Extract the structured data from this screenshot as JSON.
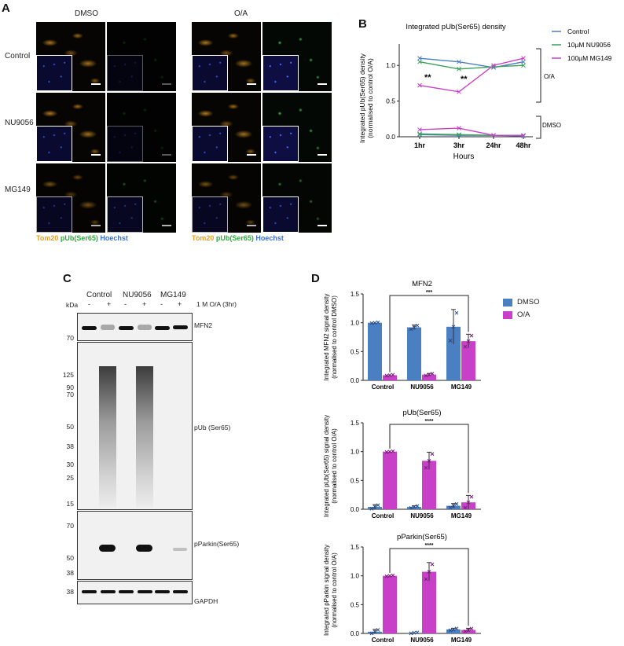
{
  "panelA": {
    "letter": "A",
    "col_labels": [
      "DMSO",
      "O/A"
    ],
    "row_labels": [
      "Control",
      "NU9056",
      "MG149"
    ],
    "legend": {
      "tom20": "Tom20",
      "pub": "pUb(Ser65)",
      "hoechst": "Hoechst"
    },
    "colors": {
      "tom20": "#e6a020",
      "pub": "#2eaa3a",
      "hoechst": "#3a6fd0"
    }
  },
  "panelB": {
    "letter": "B",
    "chart_data": {
      "type": "line",
      "title": "Integrated pUb(Ser65) density",
      "xlabel": "Hours",
      "ylabel": "Integrated pUb(Ser65) density (normalised to control O/A)",
      "ylabel_lines": [
        "Integrated pUb(Ser65) density",
        "(normalised to control O/A)"
      ],
      "categories": [
        "1hr",
        "3hr",
        "24hr",
        "48hr"
      ],
      "yticks": [
        "0.0",
        "0.5",
        "1.0"
      ],
      "ylim": [
        0,
        1.3
      ],
      "legend_placement": "right",
      "group_labels": [
        "O/A",
        "DMSO"
      ],
      "significance": [
        "**",
        "**"
      ],
      "series": [
        {
          "name": "Control",
          "condition": "O/A",
          "color": "#4a7fc1",
          "values": [
            1.1,
            1.05,
            0.97,
            1.05
          ]
        },
        {
          "name": "10µM NU9056",
          "condition": "O/A",
          "color": "#3aa05a",
          "values": [
            1.05,
            0.95,
            0.98,
            1.0
          ]
        },
        {
          "name": "100µM MG149",
          "condition": "O/A",
          "color": "#c840c8",
          "values": [
            0.72,
            0.63,
            1.0,
            1.1
          ]
        },
        {
          "name": "Control",
          "condition": "DMSO",
          "color": "#4a7fc1",
          "values": [
            0.03,
            0.02,
            0.02,
            0.01
          ]
        },
        {
          "name": "10µM NU9056",
          "condition": "DMSO",
          "color": "#3aa05a",
          "values": [
            0.04,
            0.03,
            0.02,
            0.02
          ]
        },
        {
          "name": "100µM MG149",
          "condition": "DMSO",
          "color": "#c840c8",
          "values": [
            0.1,
            0.12,
            0.02,
            0.02
          ]
        }
      ]
    }
  },
  "panelC": {
    "letter": "C",
    "groups": [
      "Control",
      "NU9056",
      "MG149"
    ],
    "lane_signs": [
      "-",
      "+",
      "-",
      "+",
      "-",
      "+"
    ],
    "treatment": "1  M O/A (3hr)",
    "kda": "kDa",
    "blots": [
      {
        "label": "MFN2",
        "markers": [
          "70"
        ]
      },
      {
        "label": "pUb (Ser65)",
        "markers": [
          "125",
          "90",
          "70",
          "50",
          "38",
          "30",
          "25",
          "15"
        ]
      },
      {
        "label": "pParkin(Ser65)",
        "markers": [
          "70",
          "50",
          "38"
        ]
      },
      {
        "label": "GAPDH",
        "markers": [
          "38"
        ]
      }
    ]
  },
  "panelD": {
    "letter": "D",
    "legend": [
      {
        "name": "DMSO",
        "color": "#4a7fc1"
      },
      {
        "name": "O/A",
        "color": "#c840c8"
      }
    ],
    "chart_data": [
      {
        "type": "bar",
        "title": "MFN2",
        "ylabel_lines": [
          "Integrated MFN2 signal density",
          "(normalised to control DMSO)"
        ],
        "categories": [
          "Control",
          "NU9056",
          "MG149"
        ],
        "yticks": [
          "0.0",
          "0.5",
          "1.0",
          "1.5"
        ],
        "ylim": [
          0,
          1.5
        ],
        "significance": "***",
        "series": [
          {
            "name": "DMSO",
            "color": "#4a7fc1",
            "values": [
              1.0,
              0.92,
              0.93
            ],
            "err": [
              0.01,
              0.04,
              0.3
            ]
          },
          {
            "name": "O/A",
            "color": "#c840c8",
            "values": [
              0.09,
              0.1,
              0.68
            ],
            "err": [
              0.01,
              0.02,
              0.12
            ]
          }
        ]
      },
      {
        "type": "bar",
        "title": "pUb(Ser65)",
        "ylabel_lines": [
          "Integrated pUb(Ser65) signal density",
          "(normalised to control O/A)"
        ],
        "categories": [
          "Control",
          "NU9056",
          "MG149"
        ],
        "yticks": [
          "0.0",
          "0.5",
          "1.0",
          "1.5"
        ],
        "ylim": [
          0,
          1.5
        ],
        "significance": "****",
        "series": [
          {
            "name": "DMSO",
            "color": "#4a7fc1",
            "values": [
              0.04,
              0.04,
              0.06
            ],
            "err": [
              0.04,
              0.02,
              0.04
            ]
          },
          {
            "name": "O/A",
            "color": "#c840c8",
            "values": [
              1.0,
              0.84,
              0.12
            ],
            "err": [
              0.01,
              0.15,
              0.12
            ]
          }
        ]
      },
      {
        "type": "bar",
        "title": "pParkin(Ser65)",
        "ylabel_lines": [
          "Integrated pParkin signal density",
          "(normalised to control O/A)"
        ],
        "categories": [
          "Control",
          "NU9056",
          "MG149"
        ],
        "yticks": [
          "0.0",
          "0.5",
          "1.0",
          "1.5"
        ],
        "ylim": [
          0,
          1.5
        ],
        "significance": "****",
        "series": [
          {
            "name": "DMSO",
            "color": "#4a7fc1",
            "values": [
              0.03,
              0.01,
              0.07
            ],
            "err": [
              0.04,
              0.01,
              0.02
            ]
          },
          {
            "name": "O/A",
            "color": "#c840c8",
            "values": [
              1.0,
              1.07,
              0.06
            ],
            "err": [
              0.01,
              0.16,
              0.03
            ]
          }
        ]
      }
    ]
  }
}
